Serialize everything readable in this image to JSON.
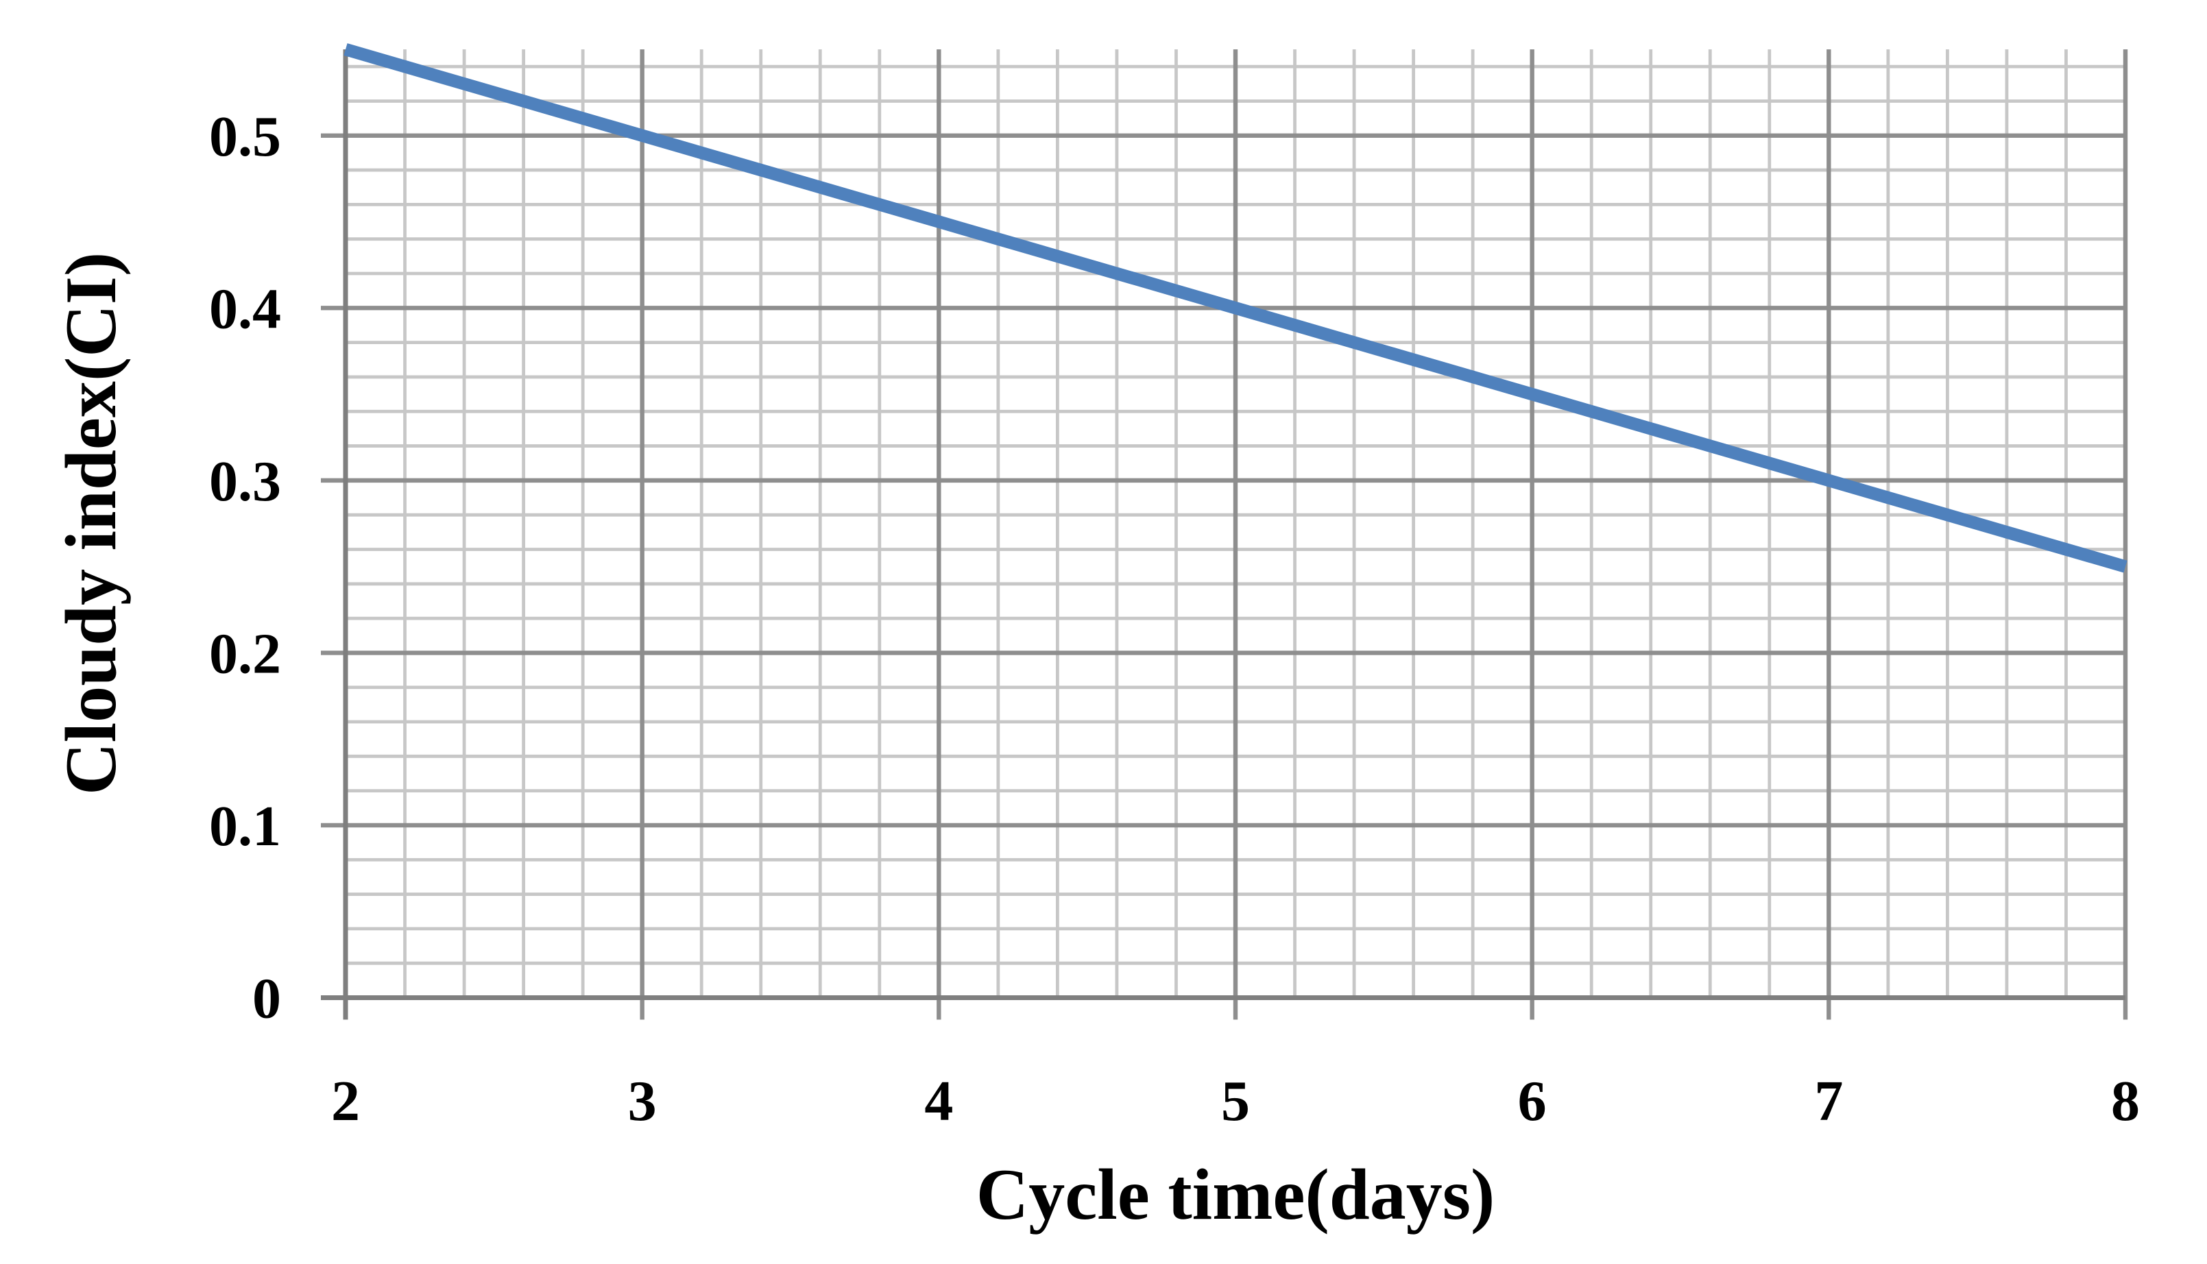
{
  "chart_data": {
    "type": "line",
    "title": "",
    "xlabel": "Cycle time(days)",
    "ylabel": "Cloudy index(CI)",
    "xlim": [
      2,
      8
    ],
    "ylim": [
      0,
      0.55
    ],
    "x_major_ticks": [
      2,
      3,
      4,
      5,
      6,
      7,
      8
    ],
    "y_major_ticks": [
      0,
      0.1,
      0.2,
      0.3,
      0.4,
      0.5
    ],
    "x_minor_step": 0.2,
    "y_minor_step": 0.02,
    "grid": {
      "major": true,
      "minor": true
    },
    "legend": "none",
    "series": [
      {
        "points": [
          {
            "x": 2,
            "y": 0.55
          },
          {
            "x": 3,
            "y": 0.5
          },
          {
            "x": 4,
            "y": 0.45
          },
          {
            "x": 5,
            "y": 0.4
          },
          {
            "x": 6,
            "y": 0.35
          },
          {
            "x": 7,
            "y": 0.3
          },
          {
            "x": 8,
            "y": 0.25
          }
        ],
        "color": "#4F81BD"
      }
    ]
  },
  "colors": {
    "background": "#FFFFFF",
    "line": "#4F81BD",
    "grid_minor": "#C7C7C7",
    "grid_major": "#8E8E8E",
    "axis": "#7F7F7F",
    "text": "#000000"
  }
}
